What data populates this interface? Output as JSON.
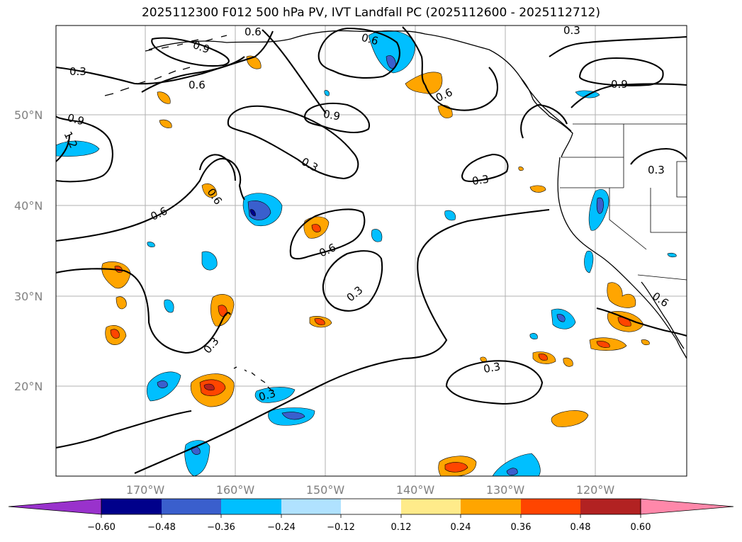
{
  "title": "2025112300 F012 500 hPa PV, IVT Landfall PC (2025112600 - 2025112712)",
  "map": {
    "lat_labels": [
      "50°N",
      "40°N",
      "30°N",
      "20°N"
    ],
    "lon_labels": [
      "170°W",
      "160°W",
      "150°W",
      "140°W",
      "130°W",
      "120°W"
    ],
    "contour_labels": [
      "0.6",
      "0.9",
      "0.3",
      "0.6",
      "0.6",
      "0.6",
      "0.9",
      "0.3",
      "0.9",
      "1.2",
      "0.9",
      "0.3",
      "0.3",
      "0.6",
      "0.6",
      "0.6",
      "0.3",
      "0.3",
      "0.3",
      "0.3",
      "0.6",
      "0.3"
    ]
  },
  "colorbar": {
    "ticks": [
      "−0.60",
      "−0.48",
      "−0.36",
      "−0.24",
      "−0.12",
      "0.12",
      "0.24",
      "0.36",
      "0.48",
      "0.60"
    ],
    "colors": [
      "#8b2fc9",
      "#9932cc",
      "#00008b",
      "#3a5fcd",
      "#00bfff",
      "#b0e2ff",
      "#ffffff",
      "#ffeb8a",
      "#ffa500",
      "#ff4500",
      "#b22222",
      "#ff88aa"
    ]
  },
  "colors": {
    "blue": "#00bfff",
    "medblue": "#3a5fcd",
    "navy": "#00008b",
    "orange": "#ffa500",
    "red": "#ff4500",
    "grid": "#b0b0b0"
  }
}
